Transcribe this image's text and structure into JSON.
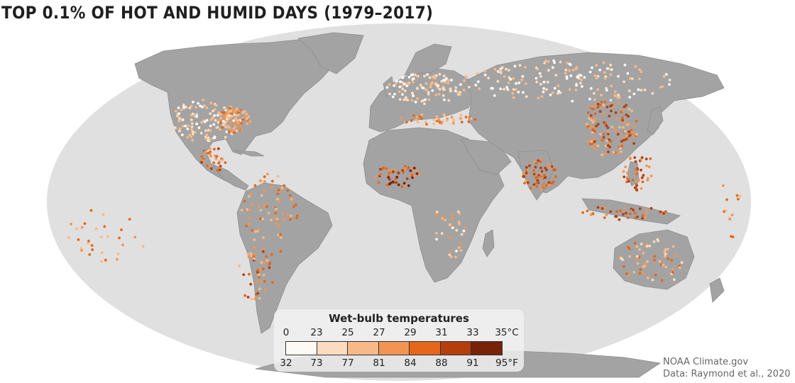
{
  "title": "TOP 0.1% OF HOT AND HUMID DAYS (1979–2017)",
  "legend": {
    "title": "Wet-bulb temperatures",
    "celsius": [
      "0",
      "23",
      "25",
      "27",
      "29",
      "31",
      "33",
      "35°C"
    ],
    "fahrenheit": [
      "32",
      "73",
      "77",
      "81",
      "84",
      "88",
      "91",
      "95°F"
    ],
    "colors": [
      "#fdfaf6",
      "#fbdcc0",
      "#f8b988",
      "#f29552",
      "#e4671c",
      "#b43f0c",
      "#782208"
    ]
  },
  "credits": {
    "line1": "NOAA Climate.gov",
    "line2": "Data: Raymond et al., 2020"
  },
  "map_colors": {
    "ocean": "#e0e0e0",
    "land": "#a3a3a3",
    "border": "#8a8a8a"
  }
}
